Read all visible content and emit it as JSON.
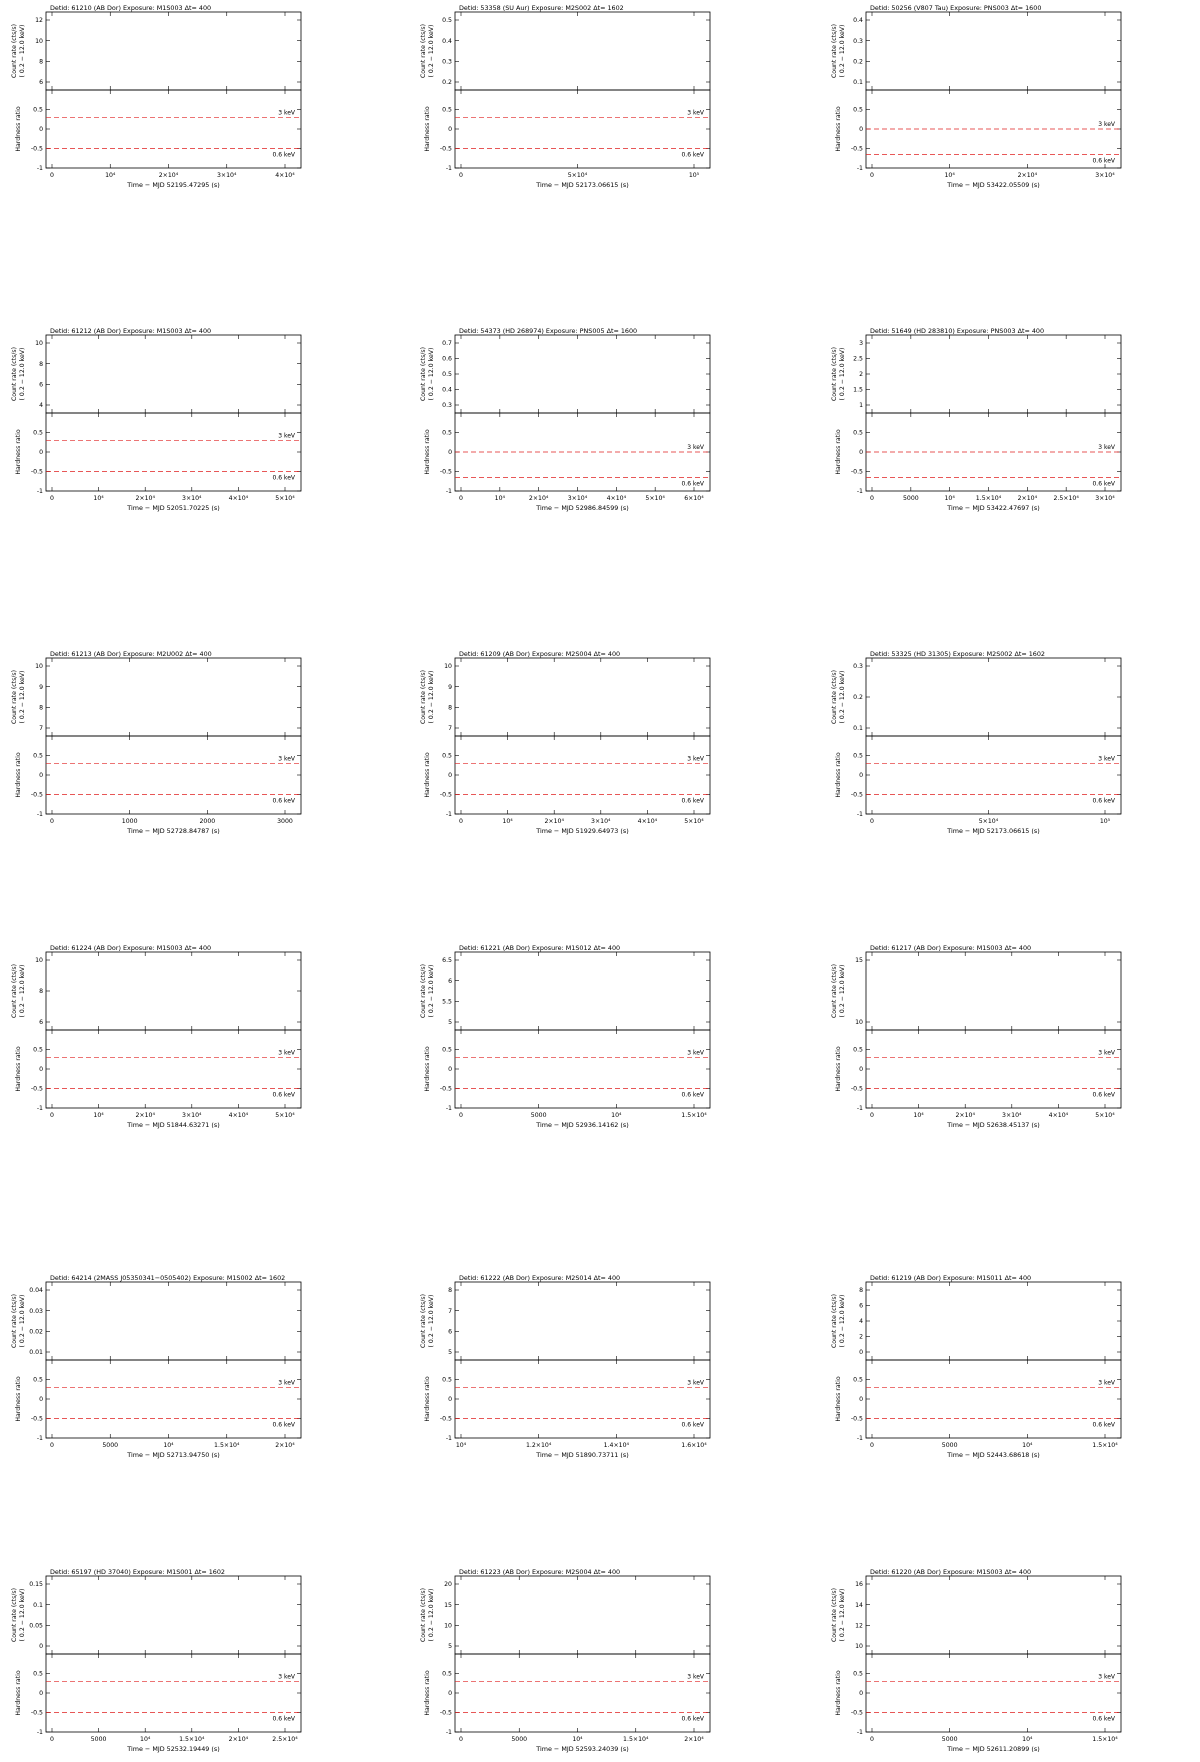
{
  "common": {
    "count_ylabel_1": "Count rate (cts/s)",
    "count_ylabel_2": "( 0.2 − 12.0 keV)",
    "hr_ylabel": "Hardness ratio",
    "hr_ticks": [
      "-1",
      "-0.5",
      "0",
      "0.5"
    ],
    "line_hard_label": "3 keV",
    "line_soft_label": "0.6 keV",
    "ref_line_color": "#e02020"
  },
  "chart_data": [
    {
      "type": "scatter",
      "title": "Detid: 61210 (AB Dor)    Exposure: M1S003    Δt=  400",
      "xlabel": "Time − MJD  52195.47295  (s)",
      "xticks": [
        "0",
        "10⁴",
        "2×10⁴",
        "3×10⁴",
        "4×10⁴"
      ],
      "yticks": [
        "6",
        "8",
        "10",
        "12"
      ],
      "hr_hard": 0.3,
      "hr_soft": -0.5
    },
    {
      "type": "scatter",
      "title": "Detid: 53358 (SU Aur)    Exposure: M2S002   Δt= 1602",
      "xlabel": "Time − MJD  52173.06615  (s)",
      "xticks": [
        "0",
        "5×10⁴",
        "10⁵"
      ],
      "yticks": [
        "0.2",
        "0.3",
        "0.4",
        "0.5"
      ],
      "hr_hard": 0.3,
      "hr_soft": -0.5
    },
    {
      "type": "scatter",
      "title": "Detid: 50256 (V807 Tau)    Exposure: PNS003   Δt= 1600",
      "xlabel": "Time − MJD  53422.05509  (s)",
      "xticks": [
        "0",
        "10⁴",
        "2×10⁴",
        "3×10⁴"
      ],
      "yticks": [
        "0.1",
        "0.2",
        "0.3",
        "0.4"
      ],
      "hr_hard": 0.0,
      "hr_soft": -0.65
    },
    {
      "type": "scatter",
      "title": "Detid: 61212 (AB Dor)    Exposure: M1S003    Δt=  400",
      "xlabel": "Time − MJD  52051.70225  (s)",
      "xticks": [
        "0",
        "10⁴",
        "2×10⁴",
        "3×10⁴",
        "4×10⁴",
        "5×10⁴"
      ],
      "yticks": [
        "4",
        "6",
        "8",
        "10"
      ],
      "hr_hard": 0.3,
      "hr_soft": -0.5
    },
    {
      "type": "scatter",
      "title": "Detid: 54373 (HD 268974)    Exposure: PNS005   Δt= 1600",
      "xlabel": "Time − MJD  52986.84599  (s)",
      "xticks": [
        "0",
        "10⁴",
        "2×10⁴",
        "3×10⁴",
        "4×10⁴",
        "5×10⁴",
        "6×10⁴"
      ],
      "yticks": [
        "0.3",
        "0.4",
        "0.5",
        "0.6",
        "0.7"
      ],
      "hr_hard": 0.0,
      "hr_soft": -0.65
    },
    {
      "type": "scatter",
      "title": "Detid: 51649 (HD 283810)    Exposure: PNS003   Δt=  400",
      "xlabel": "Time − MJD  53422.47697  (s)",
      "xticks": [
        "0",
        "5000",
        "10⁴",
        "1.5×10⁴",
        "2×10⁴",
        "2.5×10⁴",
        "3×10⁴"
      ],
      "yticks": [
        "1",
        "1.5",
        "2",
        "2.5",
        "3"
      ],
      "hr_hard": 0.0,
      "hr_soft": -0.65
    },
    {
      "type": "scatter",
      "title": "Detid: 61213 (AB Dor)    Exposure: M2U002    Δt=  400",
      "xlabel": "Time − MJD  52728.84787  (s)",
      "xticks": [
        "0",
        "1000",
        "2000",
        "3000"
      ],
      "yticks": [
        "7",
        "8",
        "9",
        "10"
      ],
      "hr_hard": 0.3,
      "hr_soft": -0.5
    },
    {
      "type": "scatter",
      "title": "Detid: 61209 (AB Dor)    Exposure: M2S004    Δt=  400",
      "xlabel": "Time − MJD  51929.64973  (s)",
      "xticks": [
        "0",
        "10⁴",
        "2×10⁴",
        "3×10⁴",
        "4×10⁴",
        "5×10⁴"
      ],
      "yticks": [
        "7",
        "8",
        "9",
        "10"
      ],
      "hr_hard": 0.3,
      "hr_soft": -0.5
    },
    {
      "type": "scatter",
      "title": "Detid: 53325 (HD 31305)    Exposure: M2S002   Δt= 1602",
      "xlabel": "Time − MJD  52173.06615  (s)",
      "xticks": [
        "0",
        "5×10⁴",
        "10⁵"
      ],
      "yticks": [
        "0.1",
        "0.2",
        "0.3"
      ],
      "hr_hard": 0.3,
      "hr_soft": -0.5
    },
    {
      "type": "scatter",
      "title": "Detid: 61224 (AB Dor)    Exposure: M1S003    Δt=  400",
      "xlabel": "Time − MJD  51844.63271  (s)",
      "xticks": [
        "0",
        "10⁴",
        "2×10⁴",
        "3×10⁴",
        "4×10⁴",
        "5×10⁴"
      ],
      "yticks": [
        "6",
        "8",
        "10"
      ],
      "hr_hard": 0.3,
      "hr_soft": -0.5
    },
    {
      "type": "scatter",
      "title": "Detid: 61221 (AB Dor)    Exposure: M1S012    Δt=  400",
      "xlabel": "Time − MJD  52936.14162  (s)",
      "xticks": [
        "0",
        "5000",
        "10⁴",
        "1.5×10⁴"
      ],
      "yticks": [
        "5",
        "5.5",
        "6",
        "6.5"
      ],
      "hr_hard": 0.3,
      "hr_soft": -0.5
    },
    {
      "type": "scatter",
      "title": "Detid: 61217 (AB Dor)    Exposure: M1S003    Δt=  400",
      "xlabel": "Time − MJD  52638.45137  (s)",
      "xticks": [
        "0",
        "10⁴",
        "2×10⁴",
        "3×10⁴",
        "4×10⁴",
        "5×10⁴"
      ],
      "yticks": [
        "10",
        "15"
      ],
      "hr_hard": 0.3,
      "hr_soft": -0.5
    },
    {
      "type": "scatter",
      "title": "Detid: 64214 (2MASS J05350341−0505402)    Exposure: M1S002   Δt= 1602",
      "xlabel": "Time − MJD  52713.94750  (s)",
      "xticks": [
        "0",
        "5000",
        "10⁴",
        "1.5×10⁴",
        "2×10⁴"
      ],
      "yticks": [
        "0.01",
        "0.02",
        "0.03",
        "0.04"
      ],
      "hr_hard": 0.3,
      "hr_soft": -0.5
    },
    {
      "type": "scatter",
      "title": "Detid: 61222 (AB Dor)    Exposure: M2S014    Δt=  400",
      "xlabel": "Time − MJD  51890.73711  (s)",
      "xticks": [
        "10⁴",
        "1.2×10⁴",
        "1.4×10⁴",
        "1.6×10⁴"
      ],
      "yticks": [
        "5",
        "6",
        "7",
        "8"
      ],
      "hr_hard": 0.3,
      "hr_soft": -0.5
    },
    {
      "type": "scatter",
      "title": "Detid: 61219 (AB Dor)    Exposure: M1S011    Δt=  400",
      "xlabel": "Time − MJD  52443.68618  (s)",
      "xticks": [
        "0",
        "5000",
        "10⁴",
        "1.5×10⁴"
      ],
      "yticks": [
        "0",
        "2",
        "4",
        "6",
        "8"
      ],
      "hr_hard": 0.3,
      "hr_soft": -0.5
    },
    {
      "type": "scatter",
      "title": "Detid: 65197 (HD 37040)    Exposure: M1S001   Δt= 1602",
      "xlabel": "Time − MJD  52532.19449  (s)",
      "xticks": [
        "0",
        "5000",
        "10⁴",
        "1.5×10⁴",
        "2×10⁴",
        "2.5×10⁴"
      ],
      "yticks": [
        "0",
        "0.05",
        "0.1",
        "0.15"
      ],
      "hr_hard": 0.3,
      "hr_soft": -0.5
    },
    {
      "type": "scatter",
      "title": "Detid: 61223 (AB Dor)    Exposure: M2S004    Δt=  400",
      "xlabel": "Time − MJD  52593.24039  (s)",
      "xticks": [
        "0",
        "5000",
        "10⁴",
        "1.5×10⁴",
        "2×10⁴"
      ],
      "yticks": [
        "5",
        "10",
        "15",
        "20"
      ],
      "hr_hard": 0.3,
      "hr_soft": -0.5
    },
    {
      "type": "scatter",
      "title": "Detid: 61220 (AB Dor)    Exposure: M1S003    Δt=  400",
      "xlabel": "Time − MJD  52611.20899  (s)",
      "xticks": [
        "0",
        "5000",
        "10⁴",
        "1.5×10⁴"
      ],
      "yticks": [
        "10",
        "12",
        "14",
        "16"
      ],
      "hr_hard": 0.3,
      "hr_soft": -0.5
    }
  ]
}
